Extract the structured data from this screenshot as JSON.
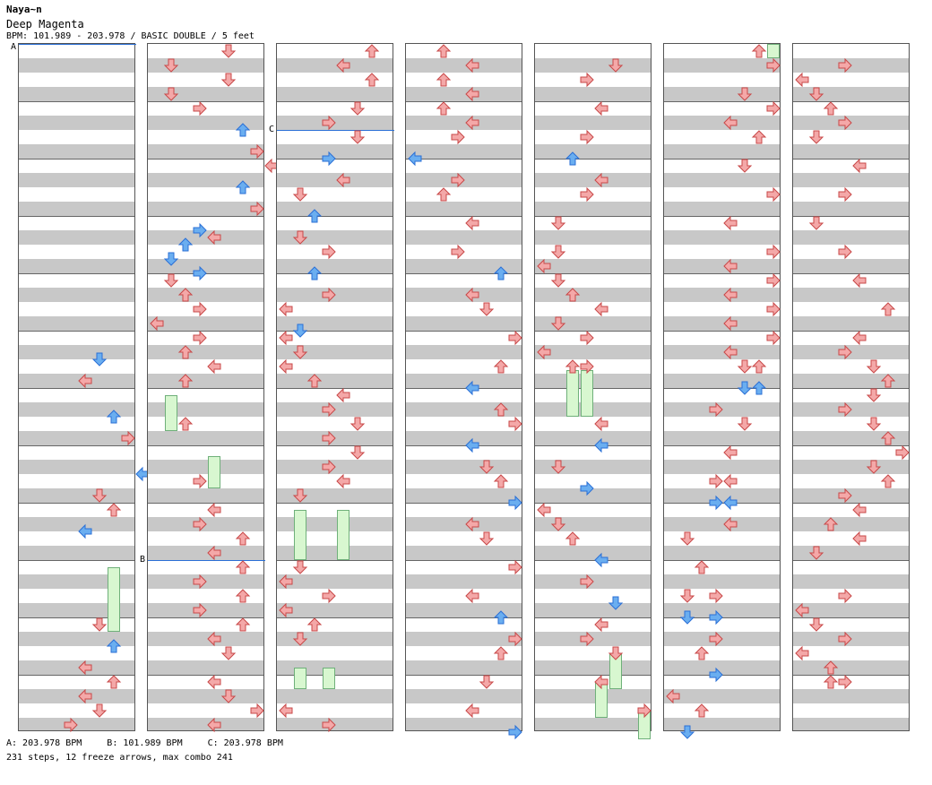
{
  "header": {
    "artist": "Naya~n",
    "title": "Deep Magenta",
    "bpm_line": "BPM: 101.989 - 203.978 / BASIC DOUBLE / 5 feet"
  },
  "bpm_markers": [
    {
      "label": "A"
    },
    {
      "label": "B"
    },
    {
      "label": "C"
    }
  ],
  "footer": {
    "bpm_a": "A: 203.978 BPM",
    "bpm_b": "B: 101.989 BPM",
    "bpm_c": "C: 203.978 BPM",
    "stats": "231 steps, 12 freeze arrows, max combo 241"
  },
  "colors": {
    "arrow_red": "#f4a8a8",
    "arrow_blue": "#6aaef0",
    "freeze": "#d8f7d0"
  },
  "chart_data": {
    "type": "step-chart",
    "columns": 7,
    "lanes_per_column": 8,
    "note_types": [
      "red-arrow",
      "blue-arrow",
      "freeze-arrow"
    ]
  }
}
